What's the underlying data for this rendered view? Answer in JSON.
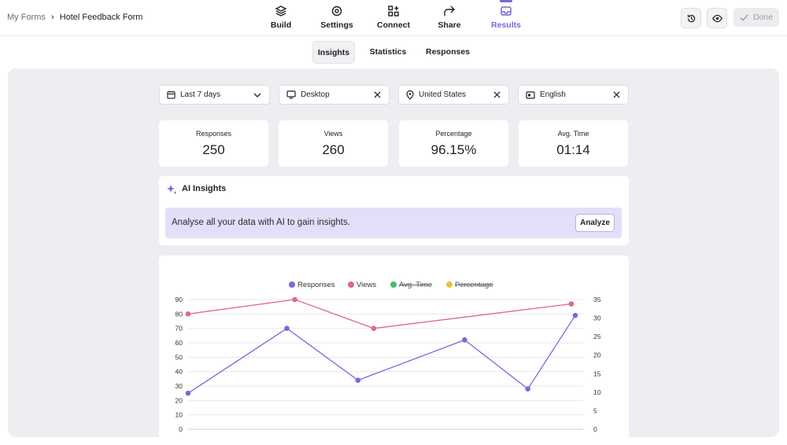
{
  "header": {
    "breadcrumb": [
      "My Forms",
      "Hotel Feedback Form"
    ],
    "nav": [
      "Build",
      "Settings",
      "Connect",
      "Share",
      "Results"
    ],
    "done": "Done"
  },
  "subtabs": [
    "Insights",
    "Statistics",
    "Responses"
  ],
  "filters": [
    "Last 7 days",
    "Desktop",
    "United States",
    "English"
  ],
  "stats": [
    {
      "label": "Responses",
      "value": "250"
    },
    {
      "label": "Views",
      "value": "260"
    },
    {
      "label": "Percentage",
      "value": "96.15%"
    },
    {
      "label": "Avg. Time",
      "value": "01:14"
    }
  ],
  "ai": {
    "title": "AI Insights",
    "message": "Analyse all your data with AI to gain insights.",
    "button": "Analyze"
  },
  "chart_data": {
    "type": "line",
    "xlim": [
      0,
      100
    ],
    "ylim": [
      0,
      90
    ],
    "yticks": [
      0,
      10,
      20,
      30,
      40,
      50,
      60,
      70,
      80,
      90
    ],
    "y2lim": [
      0,
      35
    ],
    "y2ticks": [
      0,
      5,
      10,
      15,
      20,
      25,
      30,
      35
    ],
    "grid": true,
    "series": [
      {
        "name": "Responses",
        "color": "#7b68dd",
        "x": [
          0,
          25,
          43,
          70,
          86,
          98
        ],
        "values": [
          25,
          70,
          34,
          62,
          28,
          79
        ]
      },
      {
        "name": "Views",
        "color": "#e0678b",
        "x": [
          0,
          27,
          47,
          97
        ],
        "values": [
          80,
          90,
          70,
          87
        ]
      },
      {
        "name": "Avg. Time",
        "color": "#4cb873",
        "axis": "y2",
        "hidden": true
      },
      {
        "name": "Percentage",
        "color": "#e9c23a",
        "hidden": true
      }
    ]
  }
}
